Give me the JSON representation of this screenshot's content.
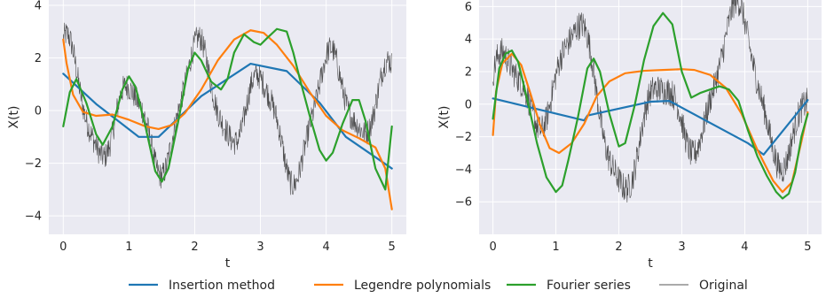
{
  "chart_data": [
    {
      "type": "line",
      "xlabel": "t",
      "ylabel": "X(t)",
      "xlim": [
        -0.22,
        5.22
      ],
      "ylim": [
        -4.7,
        4.2
      ],
      "xticks": [
        0,
        1,
        2,
        3,
        4,
        5
      ],
      "yticks": [
        -4,
        -2,
        0,
        2,
        4
      ],
      "xtick_labels": [
        "0",
        "1",
        "2",
        "3",
        "4",
        "5"
      ],
      "ytick_labels": [
        "−4",
        "−2",
        "0",
        "2",
        "4"
      ],
      "grid": true,
      "original_model": {
        "terms": [
          {
            "amp": 1.8,
            "freq": 1.0,
            "phase": 1.4
          },
          {
            "amp": 0.9,
            "freq": 0.45,
            "phase": 1.5
          },
          {
            "amp": 0.25,
            "freq": 2.5,
            "phase": 0.3
          }
        ],
        "noise_amplitude": 0.5,
        "samples": 800
      },
      "series": [
        {
          "name": "Insertion method",
          "color": "#1f77b4",
          "x": [
            0,
            0.5,
            1.15,
            1.45,
            2.1,
            2.85,
            3.4,
            3.9,
            4.3,
            5.0
          ],
          "y": [
            1.4,
            0.25,
            -1.0,
            -1.0,
            0.55,
            1.78,
            1.5,
            0.3,
            -1.0,
            -2.2
          ]
        },
        {
          "name": "Legendre polynomials",
          "color": "#ff7f0e",
          "x": [
            0,
            0.05,
            0.15,
            0.3,
            0.5,
            0.75,
            1.0,
            1.25,
            1.45,
            1.65,
            1.85,
            2.1,
            2.35,
            2.6,
            2.85,
            3.05,
            3.25,
            3.5,
            3.75,
            4.0,
            4.25,
            4.5,
            4.75,
            4.9,
            5.0
          ],
          "y": [
            2.7,
            1.8,
            0.6,
            -0.05,
            -0.2,
            -0.15,
            -0.35,
            -0.6,
            -0.7,
            -0.55,
            -0.1,
            0.8,
            1.9,
            2.7,
            3.05,
            2.95,
            2.5,
            1.7,
            0.7,
            -0.2,
            -0.75,
            -1.05,
            -1.4,
            -2.2,
            -3.75
          ]
        },
        {
          "name": "Fourier series",
          "color": "#2ca02c",
          "x": [
            0,
            0.1,
            0.2,
            0.35,
            0.5,
            0.6,
            0.75,
            0.9,
            1.0,
            1.1,
            1.25,
            1.4,
            1.5,
            1.6,
            1.75,
            1.9,
            2.0,
            2.1,
            2.25,
            2.4,
            2.5,
            2.6,
            2.75,
            2.9,
            3.0,
            3.1,
            3.25,
            3.4,
            3.5,
            3.6,
            3.75,
            3.9,
            4.0,
            4.1,
            4.25,
            4.4,
            4.5,
            4.6,
            4.75,
            4.9,
            5.0
          ],
          "y": [
            -0.6,
            0.7,
            1.2,
            0.3,
            -0.9,
            -1.3,
            -0.6,
            0.8,
            1.3,
            0.9,
            -0.6,
            -2.3,
            -2.7,
            -2.2,
            -0.4,
            1.6,
            2.2,
            1.9,
            1.1,
            0.8,
            1.2,
            2.2,
            2.9,
            2.6,
            2.5,
            2.75,
            3.1,
            3.0,
            2.2,
            1.2,
            -0.2,
            -1.5,
            -1.9,
            -1.6,
            -0.5,
            0.4,
            0.4,
            -0.4,
            -2.2,
            -3.0,
            -0.6
          ]
        }
      ]
    },
    {
      "type": "line",
      "xlabel": "t",
      "ylabel": "X(t)",
      "xlim": [
        -0.22,
        5.22
      ],
      "ylim": [
        -8.0,
        6.4
      ],
      "xticks": [
        0,
        1,
        2,
        3,
        4,
        5
      ],
      "yticks": [
        -6,
        -4,
        -2,
        0,
        2,
        4,
        6
      ],
      "xtick_labels": [
        "0",
        "1",
        "2",
        "3",
        "4",
        "5"
      ],
      "ytick_labels": [
        "−6",
        "−4",
        "−2",
        "0",
        "2",
        "4",
        "6"
      ],
      "grid": true,
      "original_model": {
        "terms": [
          {
            "amp": 3.4,
            "freq": 0.8,
            "phase": 0.9
          },
          {
            "amp": 2.5,
            "freq": 0.35,
            "phase": -0.5
          },
          {
            "amp": 0.5,
            "freq": 2.1,
            "phase": 0.7
          }
        ],
        "noise_amplitude": 0.9,
        "samples": 800
      },
      "series": [
        {
          "name": "Insertion method",
          "color": "#1f77b4",
          "x": [
            0,
            1.45,
            1.5,
            2.5,
            2.8,
            4.05,
            4.3,
            5.0
          ],
          "y": [
            0.35,
            -1.0,
            -0.7,
            0.15,
            0.2,
            -2.4,
            -3.1,
            0.25
          ]
        },
        {
          "name": "Legendre polynomials",
          "color": "#ff7f0e",
          "x": [
            0,
            0.05,
            0.15,
            0.3,
            0.45,
            0.6,
            0.75,
            0.9,
            1.05,
            1.25,
            1.45,
            1.65,
            1.85,
            2.1,
            2.4,
            2.7,
            3.0,
            3.2,
            3.45,
            3.7,
            3.95,
            4.2,
            4.45,
            4.6,
            4.75,
            4.9,
            5.0
          ],
          "y": [
            -1.9,
            0.8,
            2.5,
            3.1,
            2.4,
            0.6,
            -1.3,
            -2.7,
            -3.0,
            -2.4,
            -1.2,
            0.5,
            1.4,
            1.9,
            2.05,
            2.1,
            2.15,
            2.1,
            1.8,
            1.0,
            -0.6,
            -2.8,
            -4.7,
            -5.4,
            -4.8,
            -2.3,
            -0.5
          ]
        },
        {
          "name": "Fourier series",
          "color": "#2ca02c",
          "x": [
            0,
            0.1,
            0.2,
            0.3,
            0.4,
            0.55,
            0.7,
            0.85,
            1.0,
            1.1,
            1.2,
            1.35,
            1.5,
            1.6,
            1.7,
            1.85,
            2.0,
            2.1,
            2.25,
            2.4,
            2.55,
            2.7,
            2.85,
            3.0,
            3.15,
            3.3,
            3.45,
            3.6,
            3.75,
            3.9,
            4.05,
            4.2,
            4.35,
            4.5,
            4.6,
            4.7,
            4.8,
            4.9,
            5.0
          ],
          "y": [
            -0.9,
            2.2,
            3.1,
            3.3,
            2.6,
            0.2,
            -2.4,
            -4.5,
            -5.4,
            -5.0,
            -3.4,
            -0.8,
            2.2,
            2.8,
            2.0,
            -0.6,
            -2.6,
            -2.4,
            -0.1,
            2.7,
            4.8,
            5.6,
            4.9,
            2.0,
            0.4,
            0.7,
            0.9,
            1.1,
            0.9,
            0.2,
            -1.6,
            -3.2,
            -4.4,
            -5.4,
            -5.8,
            -5.5,
            -4.2,
            -2.0,
            -0.6
          ]
        }
      ]
    }
  ],
  "legend": {
    "placement": "bottom-center",
    "entries": [
      {
        "label": "Insertion method",
        "color": "#1f77b4"
      },
      {
        "label": "Legendre polynomials",
        "color": "#ff7f0e"
      },
      {
        "label": "Fourier series",
        "color": "#2ca02c"
      },
      {
        "label": "Original",
        "color": "#555555"
      }
    ]
  },
  "colors": {
    "plot_background": "#eaeaf2",
    "grid": "#ffffff",
    "original_trace": "#333333",
    "text": "#262626"
  }
}
